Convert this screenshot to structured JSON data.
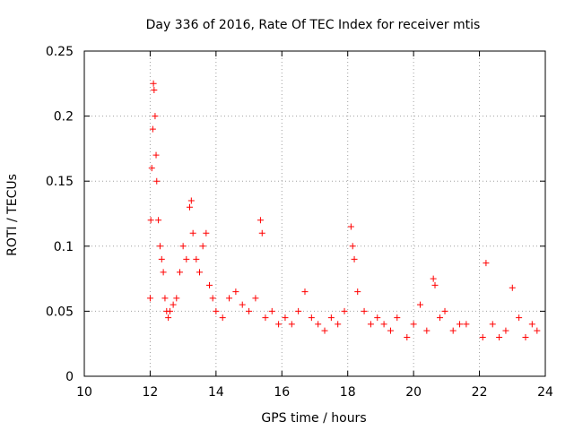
{
  "chart_data": {
    "type": "scatter",
    "title": "Day 336 of 2016, Rate Of TEC Index for receiver mtis",
    "xlabel": "GPS time / hours",
    "ylabel": "ROTI / TECUs",
    "xlim": [
      10,
      24
    ],
    "ylim": [
      0,
      0.25
    ],
    "xticks": [
      "10",
      "12",
      "14",
      "16",
      "18",
      "20",
      "22",
      "24"
    ],
    "yticks": [
      "0",
      "0.05",
      "0.1",
      "0.15",
      "0.2",
      "0.25"
    ],
    "grid": true,
    "marker": "+",
    "color": "#ff0000",
    "series": [
      {
        "name": "ROTI",
        "x": [
          12.0,
          12.02,
          12.05,
          12.08,
          12.1,
          12.12,
          12.15,
          12.18,
          12.2,
          12.25,
          12.3,
          12.35,
          12.4,
          12.45,
          12.5,
          12.55,
          12.6,
          12.7,
          12.8,
          12.9,
          13.0,
          13.1,
          13.2,
          13.25,
          13.3,
          13.4,
          13.5,
          13.6,
          13.7,
          13.8,
          13.9,
          14.0,
          14.2,
          14.4,
          14.6,
          14.8,
          15.0,
          15.2,
          15.35,
          15.4,
          15.5,
          15.7,
          15.9,
          16.1,
          16.3,
          16.5,
          16.7,
          16.9,
          17.1,
          17.3,
          17.5,
          17.7,
          17.9,
          18.1,
          18.15,
          18.2,
          18.3,
          18.5,
          18.7,
          18.9,
          19.1,
          19.3,
          19.5,
          19.8,
          20.0,
          20.2,
          20.4,
          20.6,
          20.65,
          20.8,
          20.95,
          21.2,
          21.4,
          21.6,
          22.1,
          22.2,
          22.4,
          22.6,
          22.8,
          23.0,
          23.2,
          23.4,
          23.6,
          23.75
        ],
        "y": [
          0.06,
          0.12,
          0.16,
          0.19,
          0.225,
          0.22,
          0.2,
          0.17,
          0.15,
          0.12,
          0.1,
          0.09,
          0.08,
          0.06,
          0.05,
          0.045,
          0.05,
          0.055,
          0.06,
          0.08,
          0.1,
          0.09,
          0.13,
          0.135,
          0.11,
          0.09,
          0.08,
          0.1,
          0.11,
          0.07,
          0.06,
          0.05,
          0.045,
          0.06,
          0.065,
          0.055,
          0.05,
          0.06,
          0.12,
          0.11,
          0.045,
          0.05,
          0.04,
          0.045,
          0.04,
          0.05,
          0.065,
          0.045,
          0.04,
          0.035,
          0.045,
          0.04,
          0.05,
          0.115,
          0.1,
          0.09,
          0.065,
          0.05,
          0.04,
          0.045,
          0.04,
          0.035,
          0.045,
          0.03,
          0.04,
          0.055,
          0.035,
          0.075,
          0.07,
          0.045,
          0.05,
          0.035,
          0.04,
          0.04,
          0.03,
          0.087,
          0.04,
          0.03,
          0.035,
          0.068,
          0.045,
          0.03,
          0.04,
          0.035
        ]
      }
    ]
  }
}
